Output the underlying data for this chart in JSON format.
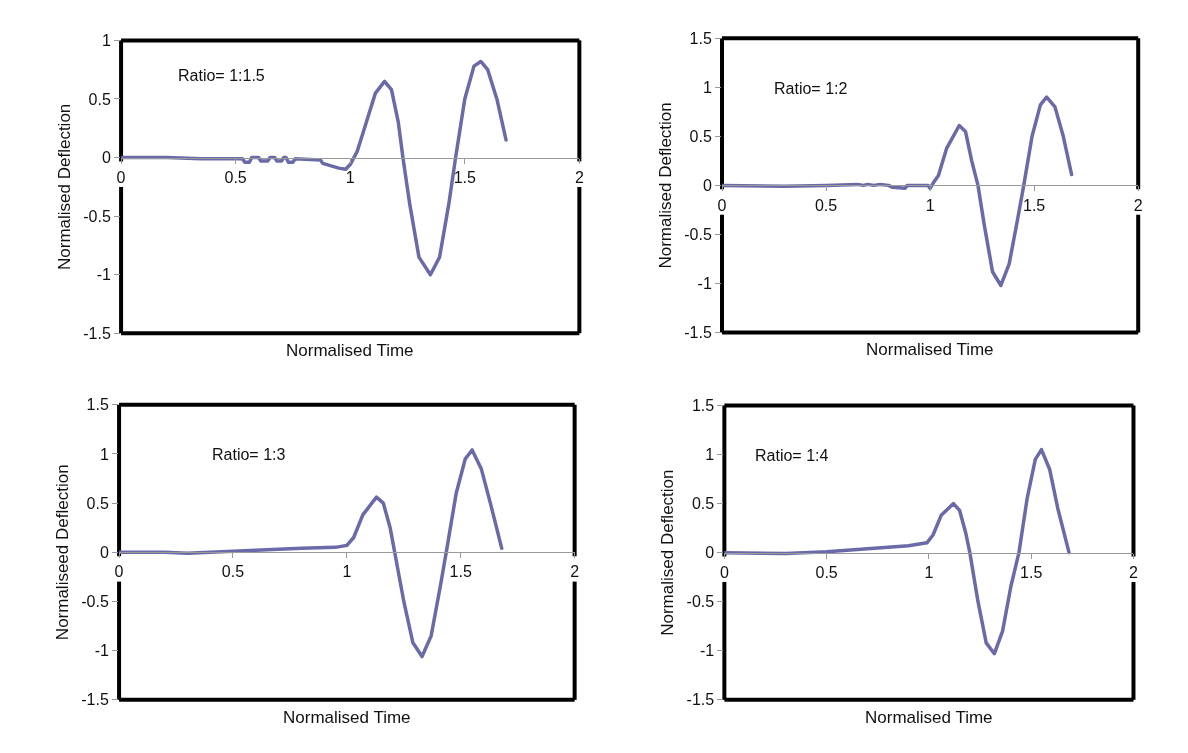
{
  "chart_data": [
    {
      "type": "line",
      "xlabel": "Normalised Time",
      "ylabel": "Normalised Deflection",
      "annotations": [
        "Ratio= 1:1.5"
      ],
      "xlim": [
        0,
        2
      ],
      "xticks": [
        0,
        0.5,
        1,
        1.5,
        2
      ],
      "ylim": [
        -1.5,
        1
      ],
      "yticks": [
        -1.5,
        -1,
        -0.5,
        0,
        0.5,
        1
      ],
      "marker": "none",
      "line_style": "solid",
      "series": [
        {
          "color": "#6a6aa8",
          "x": [
            0,
            0.2,
            0.35,
            0.5,
            0.53,
            0.54,
            0.56,
            0.57,
            0.6,
            0.61,
            0.64,
            0.65,
            0.67,
            0.68,
            0.7,
            0.71,
            0.72,
            0.73,
            0.75,
            0.76,
            0.87,
            0.88,
            0.95,
            0.98,
            1.0,
            1.03,
            1.07,
            1.11,
            1.15,
            1.18,
            1.21,
            1.23,
            1.26,
            1.3,
            1.35,
            1.39,
            1.43,
            1.46,
            1.5,
            1.54,
            1.57,
            1.6,
            1.64,
            1.68
          ],
          "values": [
            0,
            0,
            -0.01,
            -0.01,
            -0.01,
            -0.04,
            -0.04,
            0,
            0,
            -0.03,
            -0.03,
            0,
            0,
            -0.03,
            -0.03,
            0,
            0,
            -0.04,
            -0.04,
            -0.01,
            -0.02,
            -0.05,
            -0.09,
            -0.1,
            -0.06,
            0.05,
            0.3,
            0.55,
            0.65,
            0.58,
            0.3,
            0,
            -0.4,
            -0.85,
            -1.0,
            -0.85,
            -0.4,
            0,
            0.5,
            0.78,
            0.82,
            0.75,
            0.5,
            0.15
          ]
        }
      ]
    },
    {
      "type": "line",
      "xlabel": "Normalised Time",
      "ylabel": "Normalised Deflection",
      "annotations": [
        "Ratio= 1:2"
      ],
      "xlim": [
        0,
        2
      ],
      "xticks": [
        0,
        0.5,
        1,
        1.5,
        2
      ],
      "ylim": [
        -1.5,
        1.5
      ],
      "yticks": [
        -1.5,
        -1,
        -0.5,
        0,
        0.5,
        1,
        1.5
      ],
      "marker": "none",
      "line_style": "solid",
      "series": [
        {
          "color": "#6a6aa8",
          "x": [
            0,
            0.3,
            0.5,
            0.65,
            0.68,
            0.7,
            0.73,
            0.76,
            0.8,
            0.82,
            0.88,
            0.89,
            0.99,
            1.0,
            1.02,
            1.04,
            1.08,
            1.14,
            1.17,
            1.2,
            1.23,
            1.26,
            1.3,
            1.34,
            1.38,
            1.42,
            1.45,
            1.49,
            1.53,
            1.56,
            1.6,
            1.64,
            1.68
          ],
          "values": [
            0,
            -0.01,
            0,
            0.01,
            0,
            0.01,
            0,
            0.01,
            0,
            -0.02,
            -0.03,
            0,
            0,
            -0.03,
            0.04,
            0.1,
            0.38,
            0.61,
            0.55,
            0.25,
            0,
            -0.4,
            -0.88,
            -1.02,
            -0.8,
            -0.35,
            0,
            0.5,
            0.82,
            0.9,
            0.8,
            0.5,
            0.11
          ]
        }
      ]
    },
    {
      "type": "line",
      "xlabel": "Normalised Time",
      "ylabel": "Normaliseed Deflection",
      "annotations": [
        "Ratio= 1:3"
      ],
      "xlim": [
        0,
        2
      ],
      "xticks": [
        0,
        0.5,
        1,
        1.5,
        2
      ],
      "ylim": [
        -1.5,
        1.5
      ],
      "yticks": [
        -1.5,
        -1,
        -0.5,
        0,
        0.5,
        1,
        1.5
      ],
      "marker": "none",
      "line_style": "solid",
      "series": [
        {
          "color": "#6a6aa8",
          "x": [
            0,
            0.2,
            0.3,
            0.4,
            0.5,
            0.6,
            0.7,
            0.8,
            0.95,
            1.0,
            1.03,
            1.07,
            1.13,
            1.16,
            1.19,
            1.21,
            1.25,
            1.29,
            1.33,
            1.37,
            1.41,
            1.44,
            1.48,
            1.52,
            1.55,
            1.59,
            1.63,
            1.68
          ],
          "values": [
            0,
            0,
            -0.01,
            0,
            0.01,
            0.02,
            0.03,
            0.04,
            0.05,
            0.07,
            0.15,
            0.38,
            0.56,
            0.5,
            0.25,
            0,
            -0.5,
            -0.92,
            -1.06,
            -0.85,
            -0.35,
            0.05,
            0.6,
            0.95,
            1.04,
            0.85,
            0.5,
            0.04
          ]
        }
      ]
    },
    {
      "type": "line",
      "xlabel": "Normalised Time",
      "ylabel": "Normalised Deflection",
      "annotations": [
        "Ratio= 1:4"
      ],
      "xlim": [
        0,
        2
      ],
      "xticks": [
        0,
        0.5,
        1,
        1.5,
        2
      ],
      "ylim": [
        -1.5,
        1.5
      ],
      "yticks": [
        -1.5,
        -1,
        -0.5,
        0,
        0.5,
        1,
        1.5
      ],
      "marker": "none",
      "line_style": "solid",
      "series": [
        {
          "color": "#6a6aa8",
          "x": [
            0,
            0.3,
            0.5,
            0.7,
            0.9,
            0.99,
            1.02,
            1.06,
            1.12,
            1.15,
            1.18,
            1.2,
            1.24,
            1.28,
            1.32,
            1.36,
            1.4,
            1.44,
            1.48,
            1.52,
            1.55,
            1.59,
            1.63,
            1.685
          ],
          "values": [
            0,
            -0.01,
            0.01,
            0.04,
            0.07,
            0.1,
            0.18,
            0.38,
            0.5,
            0.43,
            0.2,
            0,
            -0.5,
            -0.92,
            -1.03,
            -0.8,
            -0.35,
            0,
            0.55,
            0.95,
            1.05,
            0.85,
            0.45,
            0
          ]
        }
      ]
    }
  ]
}
